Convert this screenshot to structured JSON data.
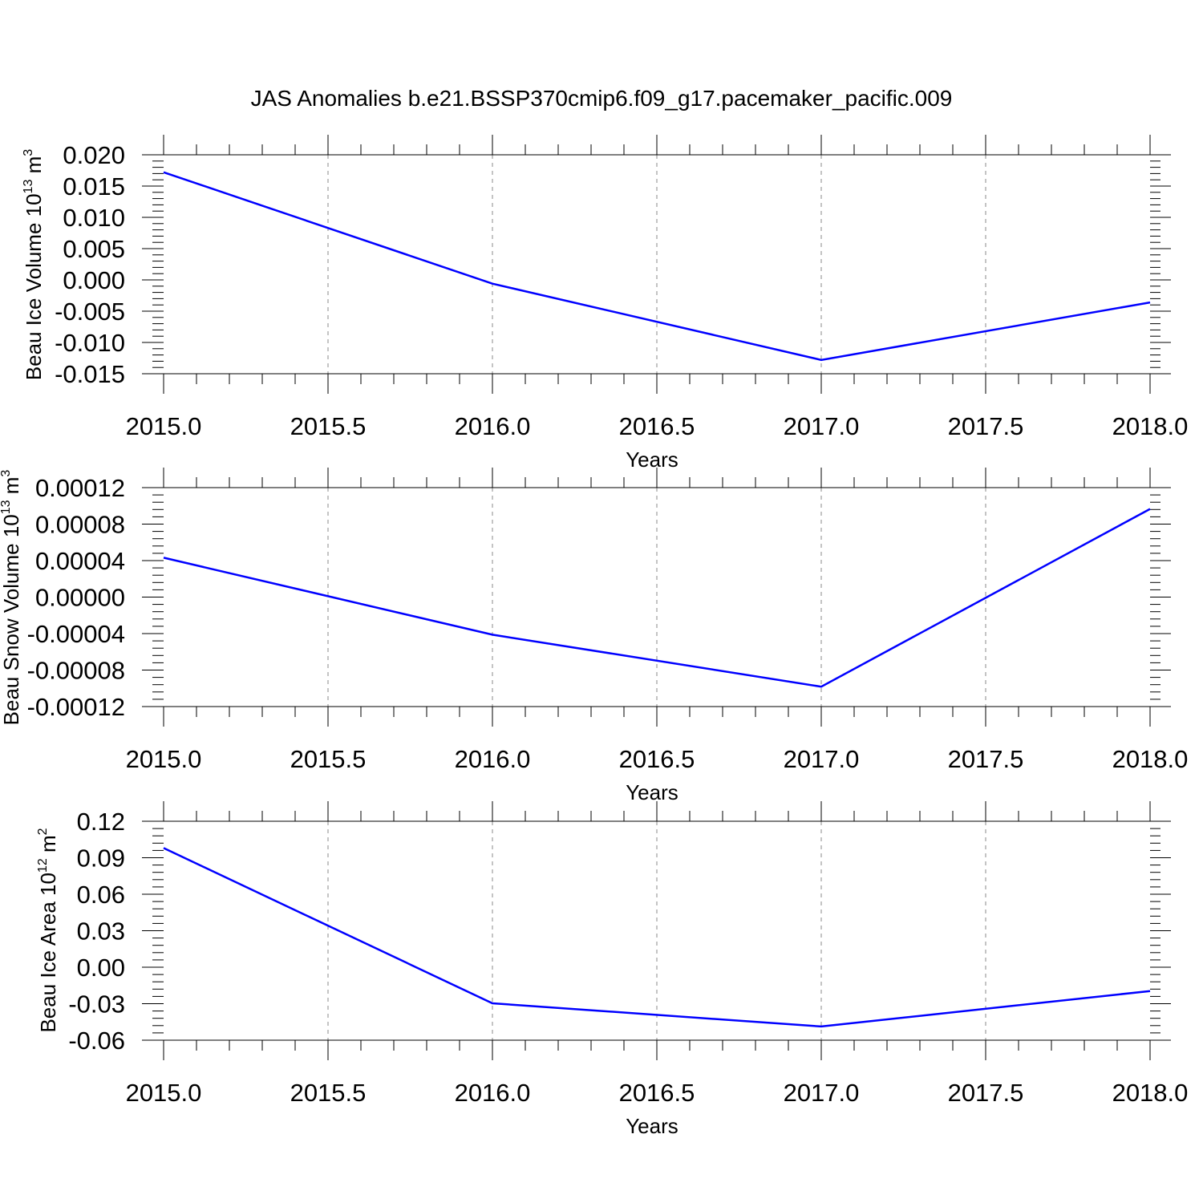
{
  "figure": {
    "title": "JAS Anomalies b.e21.BSSP370cmip6.f09_g17.pacemaker_pacific.009"
  },
  "chart_data": [
    {
      "type": "line",
      "title": "",
      "xlabel": "Years",
      "ylabel": "Beau Ice Volume 10",
      "ylabel_exponent": "13",
      "ylabel_unit": "m",
      "ylabel_unit_exponent": "3",
      "xlim": [
        2015.0,
        2018.0
      ],
      "ylim": [
        -0.015,
        0.02
      ],
      "x_ticks": [
        2015.0,
        2015.5,
        2016.0,
        2016.5,
        2017.0,
        2017.5,
        2018.0
      ],
      "x_tick_labels": [
        "2015.0",
        "2015.5",
        "2016.0",
        "2016.5",
        "2017.0",
        "2017.5",
        "2018.0"
      ],
      "y_ticks": [
        0.02,
        0.015,
        0.01,
        0.005,
        0.0,
        -0.005,
        -0.01,
        -0.015
      ],
      "y_tick_labels": [
        "0.020",
        "0.015",
        "0.010",
        "0.005",
        "0.000",
        "-0.005",
        "-0.010",
        "-0.015"
      ],
      "grid": "vertical dashed at major x ticks",
      "series": [
        {
          "color": "#0000ff",
          "x": [
            2015,
            2016,
            2017,
            2018
          ],
          "y": [
            0.0172,
            -0.0006,
            -0.0128,
            -0.0036
          ]
        }
      ]
    },
    {
      "type": "line",
      "title": "",
      "xlabel": "Years",
      "ylabel": "Beau Snow Volume 10",
      "ylabel_exponent": "13",
      "ylabel_unit": "m",
      "ylabel_unit_exponent": "3",
      "xlim": [
        2015.0,
        2018.0
      ],
      "ylim": [
        -0.00012,
        0.00012
      ],
      "x_ticks": [
        2015.0,
        2015.5,
        2016.0,
        2016.5,
        2017.0,
        2017.5,
        2018.0
      ],
      "x_tick_labels": [
        "2015.0",
        "2015.5",
        "2016.0",
        "2016.5",
        "2017.0",
        "2017.5",
        "2018.0"
      ],
      "y_ticks": [
        0.00012,
        8e-05,
        4e-05,
        0.0,
        -4e-05,
        -8e-05,
        -0.00012
      ],
      "y_tick_labels": [
        "0.00012",
        "0.00008",
        "0.00004",
        "0.00000",
        "-0.00004",
        "-0.00008",
        "-0.00012"
      ],
      "grid": "vertical dashed at major x ticks",
      "series": [
        {
          "color": "#0000ff",
          "x": [
            2015,
            2016,
            2017,
            2018
          ],
          "y": [
            4.32e-05,
            -4.12e-05,
            -9.82e-05,
            9.66e-05
          ]
        }
      ]
    },
    {
      "type": "line",
      "title": "",
      "xlabel": "Years",
      "ylabel": "Beau Ice Area 10",
      "ylabel_exponent": "12",
      "ylabel_unit": "m",
      "ylabel_unit_exponent": "2",
      "xlim": [
        2015.0,
        2018.0
      ],
      "ylim": [
        -0.06,
        0.12
      ],
      "x_ticks": [
        2015.0,
        2015.5,
        2016.0,
        2016.5,
        2017.0,
        2017.5,
        2018.0
      ],
      "x_tick_labels": [
        "2015.0",
        "2015.5",
        "2016.0",
        "2016.5",
        "2017.0",
        "2017.5",
        "2018.0"
      ],
      "y_ticks": [
        0.12,
        0.09,
        0.06,
        0.03,
        0.0,
        -0.03,
        -0.06
      ],
      "y_tick_labels": [
        "0.12",
        "0.09",
        "0.06",
        "0.03",
        "0.00",
        "-0.03",
        "-0.06"
      ],
      "grid": "vertical dashed at major x ticks",
      "series": [
        {
          "color": "#0000ff",
          "x": [
            2015,
            2016,
            2017,
            2018
          ],
          "y": [
            0.098,
            -0.0297,
            -0.0487,
            -0.0196
          ]
        }
      ]
    }
  ]
}
